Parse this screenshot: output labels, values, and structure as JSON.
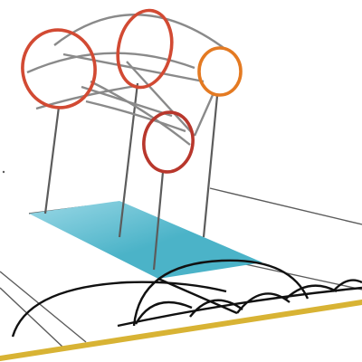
{
  "scene": {
    "subject": "sketched-arch-structure-over-water-pool",
    "colors": {
      "background": "#ffffff",
      "line_gray": "#8a8a8a",
      "line_dark": "#5c5c5c",
      "ground_line": "#111111",
      "ring_red": "#d24a33",
      "ring_deep_red": "#b8372c",
      "ring_orange": "#e47a22",
      "pool_teal": "#4bb3c8",
      "pool_light": "#9ad8e6",
      "edge_gold": "#d8b334"
    },
    "rings": [
      {
        "id": "ring-left",
        "color_key": "ring_red"
      },
      {
        "id": "ring-top",
        "color_key": "ring_red"
      },
      {
        "id": "ring-right",
        "color_key": "ring_orange"
      },
      {
        "id": "ring-front",
        "color_key": "ring_deep_red"
      }
    ]
  }
}
